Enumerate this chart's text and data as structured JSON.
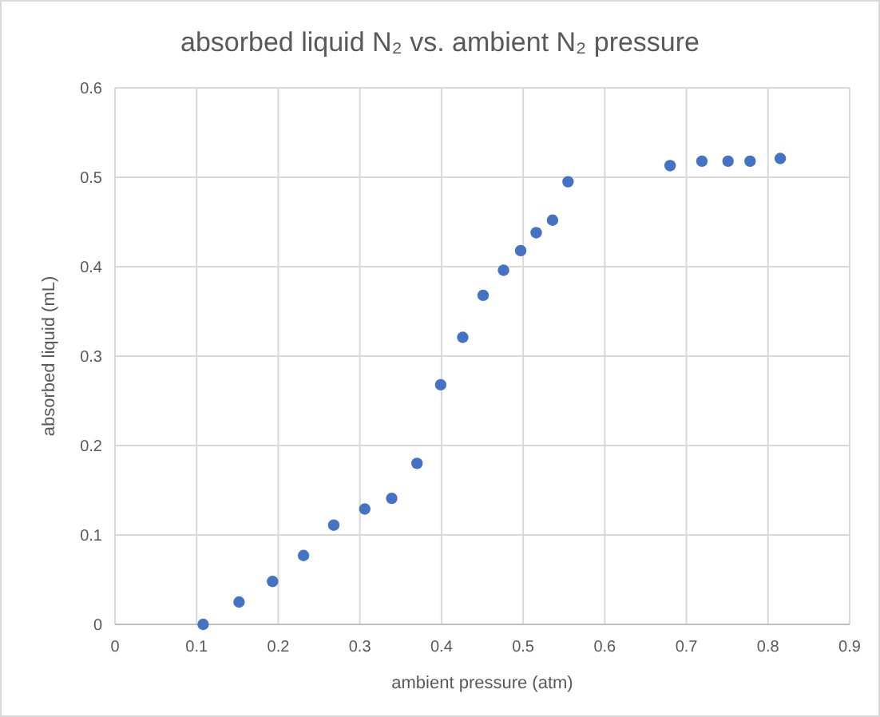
{
  "chart_data": {
    "type": "scatter",
    "title": "absorbed liquid N₂ vs. ambient N₂ pressure",
    "xlabel": "ambient pressure (atm)",
    "ylabel": "absorbed liquid (mL)",
    "x": [
      0.108,
      0.152,
      0.193,
      0.231,
      0.268,
      0.306,
      0.339,
      0.37,
      0.399,
      0.426,
      0.451,
      0.476,
      0.497,
      0.516,
      0.536,
      0.555,
      0.68,
      0.719,
      0.751,
      0.778,
      0.815
    ],
    "series": [
      {
        "color": "#4472c4",
        "values": [
          0,
          0.025,
          0.048,
          0.077,
          0.111,
          0.129,
          0.141,
          0.18,
          0.268,
          0.321,
          0.368,
          0.396,
          0.418,
          0.438,
          0.452,
          0.495,
          0.513,
          0.518,
          0.518,
          0.518,
          0.521
        ]
      }
    ],
    "xlim": [
      0,
      0.9
    ],
    "xticks": [
      0,
      0.1,
      0.2,
      0.3,
      0.4,
      0.5,
      0.6,
      0.7,
      0.8,
      0.9
    ],
    "ylim": [
      0,
      0.6
    ],
    "yticks": [
      0,
      0.1,
      0.2,
      0.3,
      0.4,
      0.5,
      0.6
    ],
    "grid": true,
    "marker": "circle"
  }
}
